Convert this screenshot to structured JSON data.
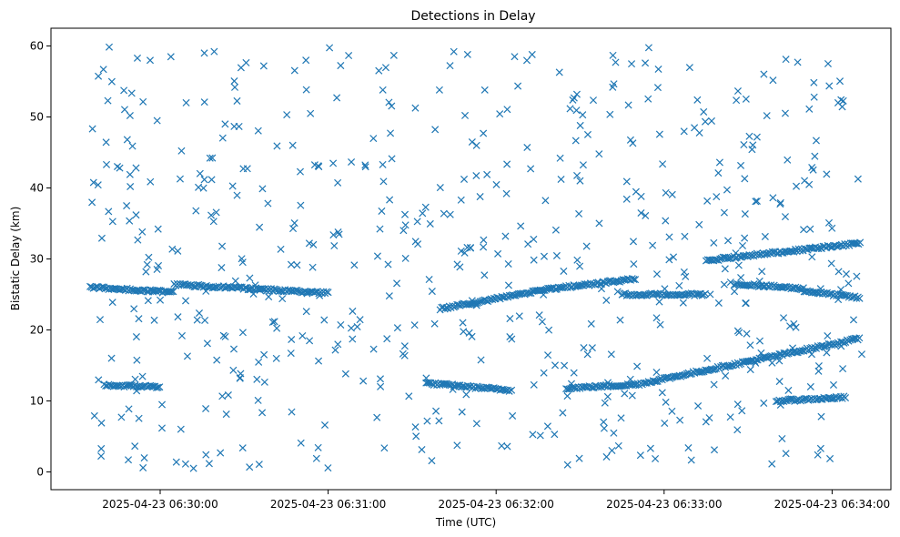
{
  "chart_data": {
    "type": "scatter",
    "title": "Detections in Delay",
    "xlabel": "Time (UTC)",
    "ylabel": "Bistatic Delay (km)",
    "x_unit": "time",
    "xlim": [
      "2025-04-23 06:29:21",
      "2025-04-23 06:34:21"
    ],
    "ylim": [
      -2.5,
      62.5
    ],
    "x_ticks": [
      "2025-04-23 06:30:00",
      "2025-04-23 06:31:00",
      "2025-04-23 06:32:00",
      "2025-04-23 06:33:00",
      "2025-04-23 06:34:00"
    ],
    "y_ticks": [
      0,
      10,
      20,
      30,
      40,
      50,
      60
    ],
    "marker": "x",
    "color": "#1f77b4",
    "grid": false,
    "legend": "none",
    "tracks": [
      {
        "t_start": "2025-04-23 06:29:35",
        "t_end": "2025-04-23 06:30:05",
        "delay_start": 26.0,
        "delay_end": 25.3
      },
      {
        "t_start": "2025-04-23 06:30:05",
        "t_end": "2025-04-23 06:31:00",
        "delay_start": 26.4,
        "delay_end": 25.2
      },
      {
        "t_start": "2025-04-23 06:31:40",
        "t_end": "2025-04-23 06:32:20",
        "delay_start": 23.0,
        "delay_end": 25.8
      },
      {
        "t_start": "2025-04-23 06:32:20",
        "t_end": "2025-04-23 06:32:50",
        "delay_start": 25.8,
        "delay_end": 27.2
      },
      {
        "t_start": "2025-04-23 06:32:45",
        "t_end": "2025-04-23 06:33:15",
        "delay_start": 25.0,
        "delay_end": 25.0
      },
      {
        "t_start": "2025-04-23 06:33:15",
        "t_end": "2025-04-23 06:34:10",
        "delay_start": 29.8,
        "delay_end": 32.2
      },
      {
        "t_start": "2025-04-23 06:33:25",
        "t_end": "2025-04-23 06:33:50",
        "delay_start": 26.5,
        "delay_end": 25.8
      },
      {
        "t_start": "2025-04-23 06:33:50",
        "t_end": "2025-04-23 06:34:10",
        "delay_start": 25.5,
        "delay_end": 24.5
      },
      {
        "t_start": "2025-04-23 06:29:40",
        "t_end": "2025-04-23 06:30:00",
        "delay_start": 12.2,
        "delay_end": 12.0
      },
      {
        "t_start": "2025-04-23 06:31:35",
        "t_end": "2025-04-23 06:32:05",
        "delay_start": 12.5,
        "delay_end": 11.5
      },
      {
        "t_start": "2025-04-23 06:32:25",
        "t_end": "2025-04-23 06:32:50",
        "delay_start": 11.8,
        "delay_end": 12.3
      },
      {
        "t_start": "2025-04-23 06:32:50",
        "t_end": "2025-04-23 06:34:10",
        "delay_start": 12.3,
        "delay_end": 18.8
      },
      {
        "t_start": "2025-04-23 06:33:40",
        "t_end": "2025-04-23 06:34:05",
        "delay_start": 10.0,
        "delay_end": 10.5
      }
    ],
    "noise_density": 600,
    "noise_seed": 424242,
    "noise_ylim": [
      0.5,
      60
    ]
  }
}
